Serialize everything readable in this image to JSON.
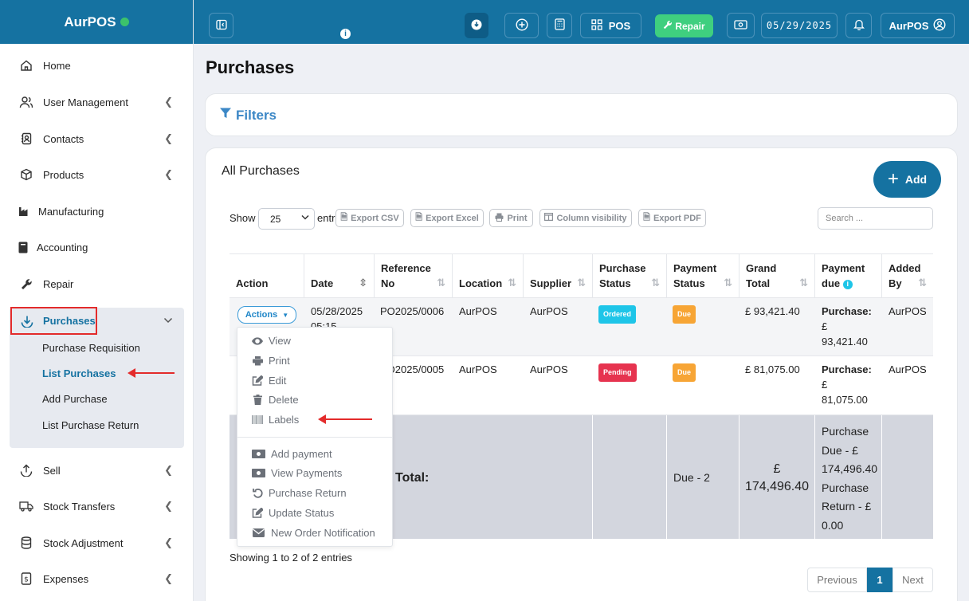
{
  "brand": {
    "name": "AurPOS"
  },
  "sidebar": {
    "items": [
      {
        "label": "Home",
        "icon": "home-icon",
        "chevron": false
      },
      {
        "label": "User Management",
        "icon": "users-icon",
        "chevron": true
      },
      {
        "label": "Contacts",
        "icon": "contacts-icon",
        "chevron": true
      },
      {
        "label": "Products",
        "icon": "cube-icon",
        "chevron": true
      },
      {
        "label": "Manufacturing",
        "icon": "factory-icon",
        "chevron": false
      },
      {
        "label": "Accounting",
        "icon": "book-icon",
        "chevron": false
      },
      {
        "label": "Repair",
        "icon": "wrench-icon",
        "chevron": false
      }
    ],
    "purchases": {
      "label": "Purchases",
      "sub_items": [
        "Purchase Requisition",
        "List Purchases",
        "Add Purchase",
        "List Purchase Return"
      ]
    },
    "items_after": [
      {
        "label": "Sell",
        "icon": "upload-icon"
      },
      {
        "label": "Stock Transfers",
        "icon": "truck-icon"
      },
      {
        "label": "Stock Adjustment",
        "icon": "database-icon"
      },
      {
        "label": "Expenses",
        "icon": "dollar-file-icon"
      }
    ]
  },
  "topbar": {
    "pos_label": "POS",
    "repair_label": "Repair",
    "date": "05/29/2025",
    "user_label": "AurPOS",
    "info_glyph": "i"
  },
  "page": {
    "title": "Purchases"
  },
  "filters": {
    "title": "Filters"
  },
  "purchases_card": {
    "title": "All Purchases",
    "add_label": "Add",
    "show_label": "Show",
    "entries_value": "25",
    "entries_label": "entries",
    "export_buttons": [
      "Export CSV",
      "Export Excel",
      "Print",
      "Column visibility",
      "Export PDF"
    ],
    "search_placeholder": "Search ..."
  },
  "table": {
    "columns": [
      {
        "line1": "Action",
        "line2": ""
      },
      {
        "line1": "Date",
        "line2": ""
      },
      {
        "line1": "Reference",
        "line2": "No"
      },
      {
        "line1": "Location",
        "line2": ""
      },
      {
        "line1": "Supplier",
        "line2": ""
      },
      {
        "line1": "Purchase",
        "line2": "Status"
      },
      {
        "line1": "Payment",
        "line2": "Status"
      },
      {
        "line1": "Grand",
        "line2": "Total"
      },
      {
        "line1": "Payment",
        "line2": "due"
      },
      {
        "line1": "Added",
        "line2": "By"
      }
    ],
    "rows": [
      {
        "date": "05/28/2025",
        "time": "05:15",
        "ref": "PO2025/0006",
        "location": "AurPOS",
        "supplier": "AurPOS",
        "purchase_status": "Ordered",
        "payment_status": "Due",
        "grand_total": "£ 93,421.40",
        "due_label": "Purchase:",
        "due_currency": "£",
        "due_amount": "93,421.40",
        "added_by": "AurPOS"
      },
      {
        "date": "",
        "time": "",
        "ref": "PO2025/0005",
        "location": "AurPOS",
        "supplier": "AurPOS",
        "purchase_status": "Pending",
        "payment_status": "Due",
        "grand_total": "£ 81,075.00",
        "due_label": "Purchase:",
        "due_currency": "£",
        "due_amount": "81,075.00",
        "added_by": "AurPOS"
      }
    ],
    "total": {
      "label": "Total:",
      "payment_status": "Due - 2",
      "grand_currency": "£",
      "grand_amount": "174,496.40",
      "due_lines": [
        "Purchase",
        "Due - £",
        "174,496.40",
        "Purchase",
        "Return - £",
        "0.00"
      ]
    }
  },
  "actions_menu": {
    "button_label": "Actions",
    "items": [
      {
        "label": "View",
        "icon": "eye-icon"
      },
      {
        "label": "Print",
        "icon": "print-icon"
      },
      {
        "label": "Edit",
        "icon": "edit-icon"
      },
      {
        "label": "Delete",
        "icon": "trash-icon"
      },
      {
        "label": "Labels",
        "icon": "barcode-icon"
      }
    ],
    "items2": [
      {
        "label": "Add payment",
        "icon": "money-icon"
      },
      {
        "label": "View Payments",
        "icon": "money-icon"
      },
      {
        "label": "Purchase Return",
        "icon": "undo-icon"
      },
      {
        "label": "Update Status",
        "icon": "edit-icon"
      },
      {
        "label": "New Order Notification",
        "icon": "envelope-icon"
      }
    ]
  },
  "footer": {
    "showing": "Showing 1 to 2 of 2 entries",
    "previous": "Previous",
    "page": "1",
    "next": "Next"
  },
  "colors": {
    "primary": "#1572a1",
    "highlight": "#e32b2b",
    "success": "#3fcf7f"
  }
}
